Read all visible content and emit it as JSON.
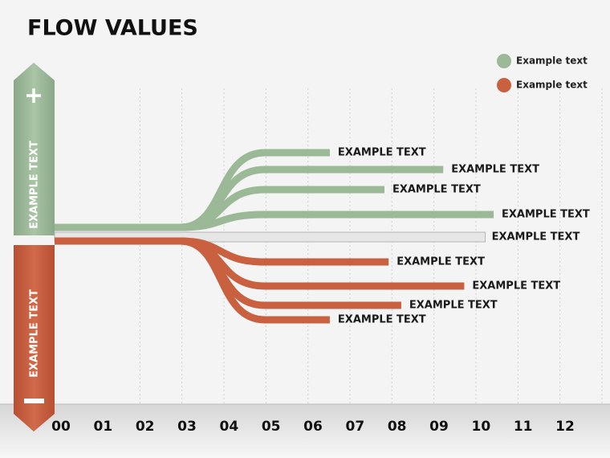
{
  "chart_data": {
    "type": "flow",
    "title": "FLOW VALUES",
    "side_labels": [
      "EXAMPLE TEXT",
      "EXAMPLE TEXT"
    ],
    "series": [
      {
        "name": "Example text",
        "color": "#9bb897",
        "values": [
          6.4,
          9.1,
          7.7,
          10.3
        ],
        "labels": [
          "EXAMPLE TEXT",
          "EXAMPLE TEXT",
          "EXAMPLE TEXT",
          "EXAMPLE TEXT"
        ]
      },
      {
        "name": "Example text",
        "color": "#c9603f",
        "values": [
          7.8,
          9.6,
          8.1,
          6.4
        ],
        "labels": [
          "EXAMPLE TEXT",
          "EXAMPLE TEXT",
          "EXAMPLE TEXT",
          "EXAMPLE TEXT"
        ]
      }
    ],
    "baseline": {
      "value": 10.1,
      "label": "EXAMPLE TEXT",
      "color": "#e6e6e6"
    },
    "xlim": [
      0,
      12
    ],
    "xticks": [
      {
        "value": 0,
        "label": "00"
      },
      {
        "value": 1,
        "label": "01"
      },
      {
        "value": 2,
        "label": "02"
      },
      {
        "value": 3,
        "label": "03"
      },
      {
        "value": 4,
        "label": "04"
      },
      {
        "value": 5,
        "label": "05"
      },
      {
        "value": 6,
        "label": "06"
      },
      {
        "value": 7,
        "label": "07"
      },
      {
        "value": 8,
        "label": "08"
      },
      {
        "value": 9,
        "label": "09"
      },
      {
        "value": 10,
        "label": "10"
      },
      {
        "value": 11,
        "label": "11"
      },
      {
        "value": 12,
        "label": "12"
      }
    ],
    "grid": true
  }
}
